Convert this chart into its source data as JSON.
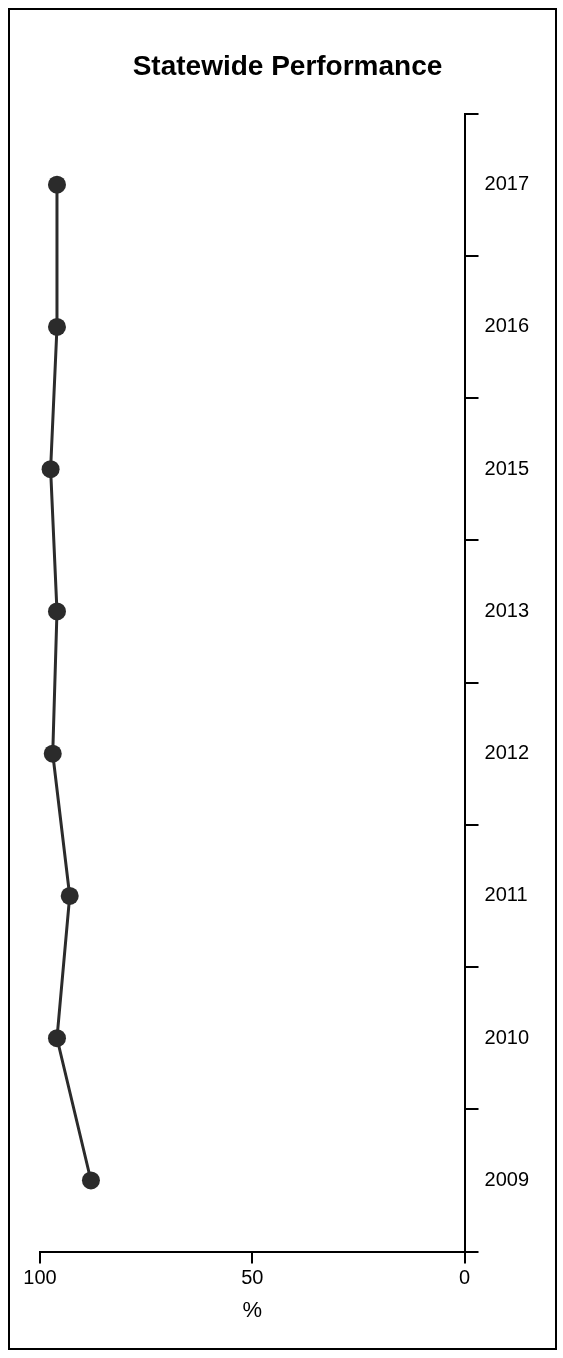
{
  "chart_data": {
    "type": "line",
    "orientation": "horizontal",
    "title": "Statewide Performance",
    "xlabel": "%",
    "categories": [
      "2017",
      "2016",
      "2015",
      "2013",
      "2012",
      "2011",
      "2010",
      "2009"
    ],
    "series": [
      {
        "color": "#2b2b2b",
        "values": [
          96,
          96,
          97.5,
          96,
          97,
          93,
          96,
          88
        ]
      }
    ],
    "xlim": [
      100,
      0
    ],
    "xticks": [
      100,
      50,
      0
    ],
    "grid": false,
    "marker": "circle",
    "line_style": "solid"
  }
}
